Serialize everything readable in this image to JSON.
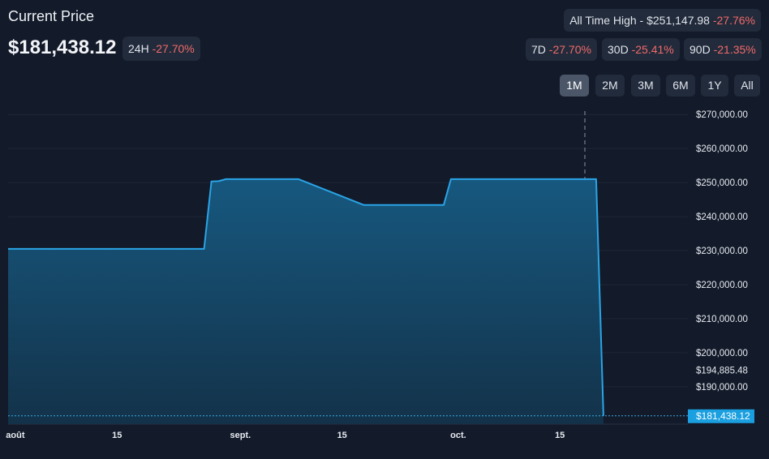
{
  "header": {
    "title": "Current Price",
    "price": "$181,438.12",
    "change_24h_label": "24H",
    "change_24h_value": "-27.70%"
  },
  "ath": {
    "label": "All Time High - $251,147.98",
    "change": "-27.76%"
  },
  "periods": [
    {
      "label": "7D",
      "value": "-27.70%"
    },
    {
      "label": "30D",
      "value": "-25.41%"
    },
    {
      "label": "90D",
      "value": "-21.35%"
    }
  ],
  "ranges": [
    {
      "label": "1M",
      "active": true
    },
    {
      "label": "2M",
      "active": false
    },
    {
      "label": "3M",
      "active": false
    },
    {
      "label": "6M",
      "active": false
    },
    {
      "label": "1Y",
      "active": false
    },
    {
      "label": "All",
      "active": false
    }
  ],
  "colors": {
    "background": "#131a29",
    "line": "#2aa4e6",
    "area_top": "#17587f",
    "area_bottom": "#133249",
    "negative": "#ef6a6a",
    "current_label_bg": "#1a9fe0"
  },
  "chart_data": {
    "type": "area",
    "x_tick_labels": [
      "août",
      "15",
      "sept.",
      "15",
      "oct.",
      "15"
    ],
    "y_tick_labels": [
      "$270,000.00",
      "$260,000.00",
      "$250,000.00",
      "$240,000.00",
      "$230,000.00",
      "$220,000.00",
      "$210,000.00",
      "$200,000.00",
      "$190,000.00"
    ],
    "y_tick_values": [
      270000,
      260000,
      250000,
      240000,
      230000,
      220000,
      210000,
      200000,
      190000
    ],
    "ylim": [
      179000,
      271000
    ],
    "grid": true,
    "extra_labels": [
      {
        "text": "$194,885.48",
        "value": 194885.48
      }
    ],
    "current_value": {
      "text": "$181,438.12",
      "value": 181438.12
    },
    "series": [
      {
        "x": [
          "2023-07-31",
          "2023-08-01",
          "2023-08-27",
          "2023-08-28",
          "2023-08-29",
          "2023-08-30",
          "2023-09-08",
          "2023-09-09",
          "2023-09-18",
          "2023-09-19",
          "2023-09-29",
          "2023-09-30",
          "2023-10-01",
          "2023-10-02",
          "2023-10-20",
          "2023-10-21"
        ],
        "y": [
          230500,
          230500,
          230500,
          250300,
          250400,
          251000,
          251000,
          251000,
          243400,
          243400,
          243400,
          251000,
          251000,
          251000,
          251000,
          181438.12
        ]
      }
    ]
  }
}
